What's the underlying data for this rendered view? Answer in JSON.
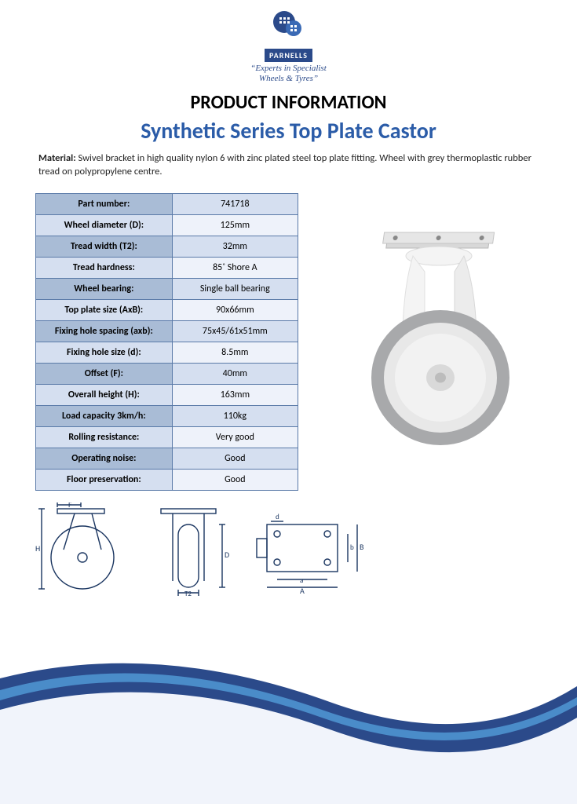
{
  "brand": {
    "name": "PARNELLS",
    "tagline_line1": "“Experts in Specialist",
    "tagline_line2": "Wheels & Tyres”",
    "logo_bg": "#2b4a8a",
    "accent": "#2b5ca8"
  },
  "headings": {
    "main": "PRODUCT INFORMATION",
    "sub": "Synthetic Series Top Plate Castor"
  },
  "material": {
    "label": "Material: ",
    "text": "Swivel bracket in high quality nylon 6 with zinc plated steel top plate fitting. Wheel with grey thermoplastic rubber tread on polypropylene centre."
  },
  "spec_table": {
    "header_bg": "#a9bcd6",
    "row_bg_alt": "#d5dff0",
    "row_bg": "#eef2fa",
    "border_color": "#5a7aa8",
    "rows": [
      {
        "key": "Part number:",
        "value": "741718"
      },
      {
        "key": "Wheel diameter (D):",
        "value": "125mm"
      },
      {
        "key": "Tread width (T2):",
        "value": "32mm"
      },
      {
        "key": "Tread hardness:",
        "value": "85˚ Shore A"
      },
      {
        "key": "Wheel bearing:",
        "value": "Single ball bearing"
      },
      {
        "key": "Top plate size (AxB):",
        "value": "90x66mm"
      },
      {
        "key": "Fixing hole spacing (axb):",
        "value": "75x45/61x51mm"
      },
      {
        "key": "Fixing hole size (d):",
        "value": "8.5mm"
      },
      {
        "key": "Offset (F):",
        "value": "40mm"
      },
      {
        "key": "Overall height (H):",
        "value": "163mm"
      },
      {
        "key": "Load capacity 3km/h:",
        "value": "110kg"
      },
      {
        "key": "Rolling resistance:",
        "value": "Very good"
      },
      {
        "key": "Operating noise:",
        "value": "Good"
      },
      {
        "key": "Floor preservation:",
        "value": "Good"
      }
    ]
  },
  "diagram_labels": {
    "F": "F",
    "H": "H",
    "T2": "T2",
    "D": "D",
    "d": "d",
    "a": "a",
    "A": "A",
    "b": "b",
    "B": "B"
  },
  "swoosh": {
    "outer": "#2b4a8a",
    "inner": "#4a8cc9"
  },
  "product_render": {
    "plate": "#d8d8d8",
    "bracket": "#f4f4f4",
    "wheel_tread": "#a8a9ab",
    "wheel_hub": "#e8e8e8"
  }
}
